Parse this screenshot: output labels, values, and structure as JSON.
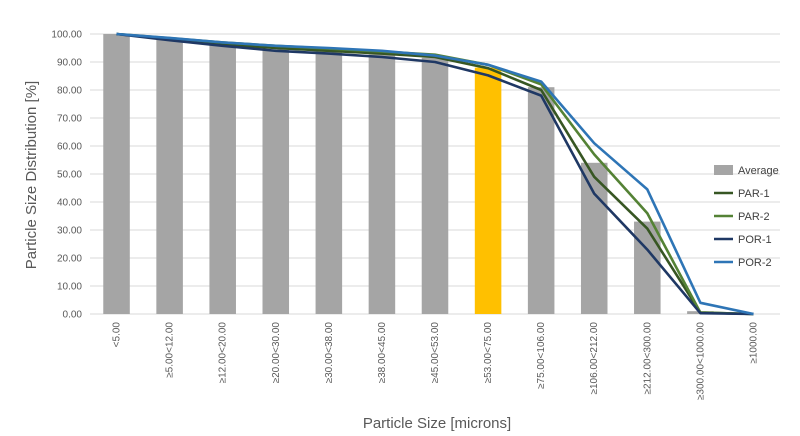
{
  "chart_data": {
    "type": "bar",
    "xlabel": "Particle Size [microns]",
    "ylabel": "Particle Size Distribution [%]",
    "ylim": [
      0,
      100
    ],
    "ytick_step": 10,
    "yticks": [
      "0.00",
      "10.00",
      "20.00",
      "30.00",
      "40.00",
      "50.00",
      "60.00",
      "70.00",
      "80.00",
      "90.00",
      "100.00"
    ],
    "grid": "horizontal",
    "legend_position": "right",
    "categories": [
      "<5.00",
      "≥5.00<12.00",
      "≥12.00<20.00",
      "≥20.00<30.00",
      "≥30.00<38.00",
      "≥38.00<45.00",
      "≥45.00<53.00",
      "≥53.00<75.00",
      "≥75.00<106.00",
      "≥106.00<212.00",
      "≥212.00<300.00",
      "≥300.00<1000.00",
      "≥1000.00"
    ],
    "highlight_index": 7,
    "colors": {
      "bar": "#a5a5a5",
      "highlight": "#ffc000",
      "grid": "#d9d9d9"
    },
    "series": [
      {
        "name": "Average",
        "kind": "bar",
        "color": "#a5a5a5",
        "values": [
          100,
          98.3,
          96.5,
          94.5,
          93.8,
          92.7,
          91.5,
          88,
          81,
          54,
          33,
          1,
          0
        ]
      },
      {
        "name": "PAR-1",
        "kind": "line",
        "color": "#375623",
        "values": [
          100,
          98.2,
          96.3,
          95.0,
          94.0,
          93.0,
          91.8,
          87.8,
          80.0,
          49.0,
          30.5,
          0.5,
          0
        ]
      },
      {
        "name": "PAR-2",
        "kind": "line",
        "color": "#548235",
        "values": [
          100,
          98.5,
          97.0,
          95.8,
          94.8,
          93.7,
          92.6,
          89.0,
          82.0,
          57.0,
          36.0,
          0.5,
          0
        ]
      },
      {
        "name": "POR-1",
        "kind": "line",
        "color": "#1f3864",
        "values": [
          100,
          97.8,
          95.8,
          94.0,
          93.0,
          91.8,
          90.0,
          85.2,
          78.0,
          43.0,
          23.0,
          0.3,
          0
        ]
      },
      {
        "name": "POR-2",
        "kind": "line",
        "color": "#2e75b6",
        "values": [
          100,
          98.6,
          97.0,
          95.8,
          95.0,
          94.0,
          92.3,
          89.0,
          83.0,
          61.0,
          44.5,
          4.0,
          0
        ]
      }
    ]
  }
}
